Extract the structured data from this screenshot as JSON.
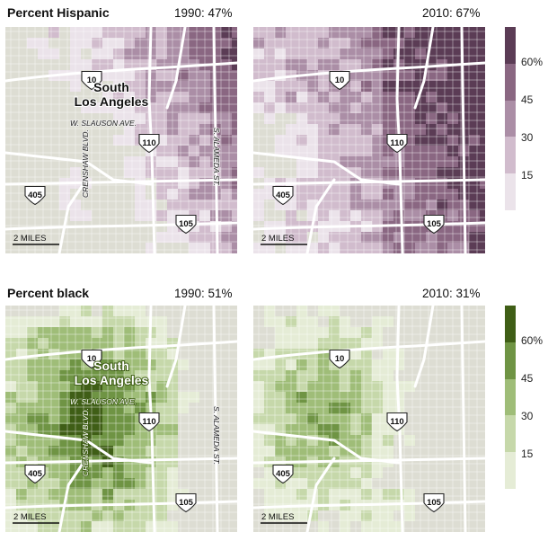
{
  "hispanic": {
    "title": "Percent Hispanic",
    "left_year": "1990: 47%",
    "right_year": "2010: 67%",
    "colors": [
      "#ebe3ea",
      "#d1bccd",
      "#ab8ea6",
      "#8a6782",
      "#5b3c55"
    ],
    "legend_ticks": [
      "60%",
      "45",
      "30",
      "15"
    ]
  },
  "black": {
    "title": "Percent black",
    "left_year": "1990: 51%",
    "right_year": "2010: 31%",
    "colors": [
      "#e5ecd6",
      "#c6d8aa",
      "#9fbd78",
      "#6f9444",
      "#3f5e16"
    ],
    "legend_ticks": [
      "60%",
      "45",
      "30",
      "15"
    ]
  },
  "map_labels": {
    "place": "South Los Angeles",
    "slauson": "W. SLAUSON AVE.",
    "crenshaw": "CRENSHAW BLVD.",
    "alameda": "S. ALAMEDA ST.",
    "scale": "2 MILES"
  },
  "highways": {
    "i10": "10",
    "i110": "110",
    "i405": "405",
    "i105": "105"
  },
  "base_color": "#ddddd3"
}
